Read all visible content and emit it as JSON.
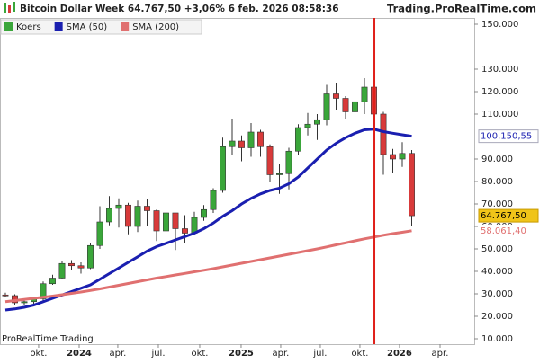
{
  "chart_data": {
    "type": "candlestick",
    "title": "Bitcoin Dollar Week 64.767,50 +3,06% 6 feb. 2026 08:58:36",
    "source": "Trading.ProRealTime.com",
    "watermark": "ProRealTime Trading",
    "candle_name": "Koers",
    "up_color": "#3aa63a",
    "down_color": "#d83a3a",
    "open": [
      29500,
      29200,
      26000,
      26500,
      27800,
      34500,
      37000,
      43500,
      42500,
      41500,
      51500,
      62000,
      68000,
      69500,
      60000,
      69000,
      67000,
      58000,
      66000,
      59000,
      57000,
      64000,
      67500,
      76000,
      95500,
      98000,
      95000,
      102000,
      95500,
      83000,
      83500,
      93500,
      104000,
      105500,
      107500,
      119000,
      117000,
      111000,
      115500,
      122000,
      110000,
      92000,
      90000,
      92500
    ],
    "high": [
      30500,
      29800,
      27500,
      28500,
      35500,
      38500,
      44500,
      45000,
      44000,
      52500,
      69000,
      73500,
      72500,
      70500,
      71500,
      72000,
      67500,
      69500,
      65500,
      65000,
      66500,
      69500,
      77000,
      99500,
      108000,
      100500,
      106000,
      103000,
      96500,
      88000,
      95000,
      105500,
      110500,
      110000,
      123000,
      124000,
      118000,
      117500,
      126000,
      122500,
      111000,
      94500,
      97500,
      94000
    ],
    "low": [
      28500,
      25200,
      24800,
      25500,
      27000,
      34000,
      36500,
      40500,
      39000,
      41000,
      50000,
      60500,
      59500,
      56500,
      57500,
      60000,
      53500,
      54000,
      49500,
      52500,
      56000,
      62500,
      66000,
      75000,
      92000,
      89000,
      91000,
      91000,
      80000,
      74500,
      76500,
      92000,
      100500,
      98500,
      105000,
      112000,
      108000,
      107500,
      110000,
      103000,
      83000,
      84000,
      86500,
      60000
    ],
    "close": [
      29200,
      26000,
      26500,
      27800,
      34500,
      37000,
      43500,
      42500,
      41500,
      51500,
      62000,
      68000,
      69500,
      60000,
      69000,
      67000,
      58000,
      66000,
      59000,
      57000,
      64000,
      67500,
      76000,
      95500,
      98000,
      95000,
      102000,
      95500,
      83000,
      83500,
      93500,
      104000,
      105500,
      107500,
      119000,
      117000,
      111000,
      115500,
      122000,
      110000,
      92000,
      90000,
      92500,
      64767.5
    ],
    "last_close_label": "64.767,50",
    "series": [
      {
        "name": "SMA (50)",
        "color": "#1a1fb0",
        "last_label": "100.150,55",
        "values": [
          22800,
          23300,
          24000,
          25000,
          26500,
          28000,
          29500,
          31000,
          32500,
          34000,
          36500,
          39000,
          41500,
          44000,
          46500,
          49000,
          51000,
          52500,
          54000,
          55500,
          57000,
          59000,
          61500,
          64500,
          67000,
          70000,
          72500,
          74500,
          76000,
          77000,
          79000,
          82000,
          86000,
          90000,
          94000,
          97000,
          99500,
          101500,
          103000,
          103300,
          102200,
          101500,
          100800,
          100150.55
        ]
      },
      {
        "name": "SMA (200)",
        "color": "#e07070",
        "last_label": "58.061,40",
        "values": [
          26500,
          27000,
          27500,
          28000,
          28500,
          29000,
          29600,
          30200,
          30800,
          31500,
          32200,
          33000,
          33800,
          34600,
          35400,
          36200,
          37000,
          37700,
          38400,
          39100,
          39800,
          40500,
          41200,
          42000,
          42800,
          43600,
          44400,
          45200,
          46000,
          46800,
          47600,
          48400,
          49200,
          50000,
          50900,
          51800,
          52700,
          53600,
          54500,
          55300,
          56100,
          56800,
          57400,
          58061.4
        ]
      }
    ],
    "vline": 39.05,
    "vline_color": "#e0201a",
    "xlim": [
      -0.57,
      49.62
    ],
    "xticks": [
      {
        "value": 3.52,
        "label": "okt."
      },
      {
        "value": 7.81,
        "label": "2024"
      },
      {
        "value": 11.9,
        "label": "apr."
      },
      {
        "value": 16.19,
        "label": "jul."
      },
      {
        "value": 20.57,
        "label": "okt."
      },
      {
        "value": 24.95,
        "label": "2025"
      },
      {
        "value": 29.14,
        "label": "apr."
      },
      {
        "value": 33.33,
        "label": "jul."
      },
      {
        "value": 37.52,
        "label": "okt."
      },
      {
        "value": 41.71,
        "label": "2026"
      },
      {
        "value": 46,
        "label": "apr."
      }
    ],
    "ylim": [
      7600,
      152800
    ],
    "yticks": [
      {
        "value": 10000,
        "label": "10.000"
      },
      {
        "value": 20000,
        "label": "20.000"
      },
      {
        "value": 30000,
        "label": "30.000"
      },
      {
        "value": 40000,
        "label": "40.000"
      },
      {
        "value": 50000,
        "label": "50.000"
      },
      {
        "value": 60000,
        "label": "60.000"
      },
      {
        "value": 70000,
        "label": "70.000"
      },
      {
        "value": 80000,
        "label": "80.000"
      },
      {
        "value": 90000,
        "label": "90.000"
      },
      {
        "value": 110000,
        "label": "110.000"
      },
      {
        "value": 120000,
        "label": "120.000"
      },
      {
        "value": 130000,
        "label": "130.000"
      },
      {
        "value": 150000,
        "label": "150.000"
      }
    ]
  }
}
